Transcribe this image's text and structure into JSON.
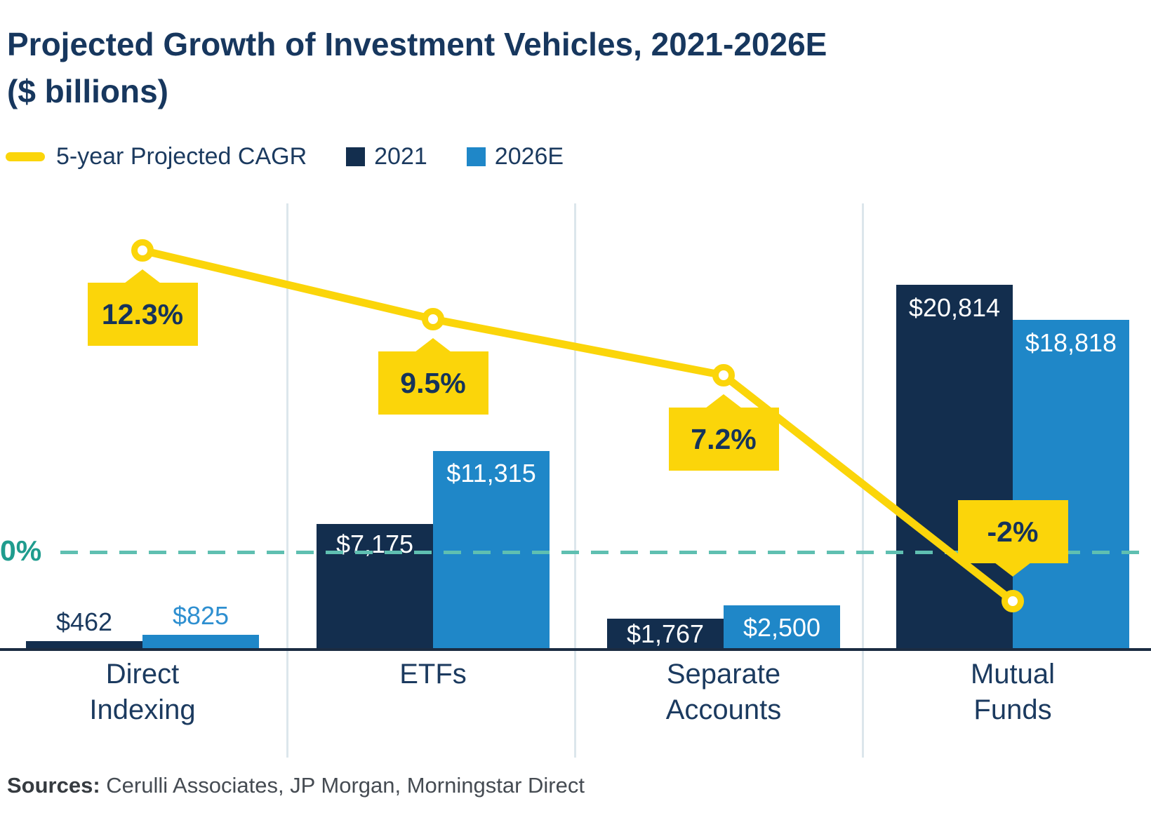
{
  "title": {
    "line1": "Projected Growth of Investment Vehicles, 2021-2026E",
    "line2": "($ billions)"
  },
  "legend": {
    "items": [
      {
        "label": "5-year Projected CAGR",
        "swatch": "yellow-line"
      },
      {
        "label": "2021",
        "swatch": "navy-square"
      },
      {
        "label": "2026E",
        "swatch": "blue-square"
      }
    ]
  },
  "zero_line": {
    "label": "0%"
  },
  "sources": {
    "prefix": "Sources:",
    "text": " Cerulli Associates, JP Morgan, Morningstar Direct"
  },
  "colors": {
    "navy_bar": "#132e4e",
    "blue_bar": "#1f87c8",
    "yellow": "#fbd50a",
    "callout_text": "#15335b",
    "teal_dash": "#5fbfb1",
    "teal_label": "#1f9c8e",
    "navy_text": "#1b3a5f",
    "blue_text": "#2e8fd0",
    "gridline": "#dce6ec",
    "axis": "#1b2c42",
    "bar_label_white": "#ffffff"
  },
  "chart_data": {
    "type": "bar",
    "title": "Projected Growth of Investment Vehicles, 2021-2026E ($ billions)",
    "xlabel": "",
    "ylabel": "$ billions",
    "ylim": [
      0,
      21000
    ],
    "grid": "vertical category separators only",
    "legend_position": "top",
    "categories": [
      "Direct Indexing",
      "ETFs",
      "Separate Accounts",
      "Mutual Funds"
    ],
    "category_display": [
      "Direct\nIndexing",
      "ETFs",
      "Separate\nAccounts",
      "Mutual\nFunds"
    ],
    "series": [
      {
        "name": "2021",
        "values": [
          462,
          7175,
          1767,
          20814
        ],
        "labels": [
          "$462",
          "$7,175",
          "$1,767",
          "$20,814"
        ]
      },
      {
        "name": "2026E",
        "values": [
          825,
          11315,
          2500,
          18818
        ],
        "labels": [
          "$825",
          "$11,315",
          "$2,500",
          "$18,818"
        ]
      }
    ],
    "line_series": {
      "name": "5-year Projected CAGR",
      "unit": "%",
      "values": [
        12.3,
        9.5,
        7.2,
        -2
      ],
      "labels": [
        "12.3%",
        "9.5%",
        "7.2%",
        "-2%"
      ],
      "callout_side": [
        "below",
        "below",
        "below",
        "above"
      ]
    },
    "reference_line": {
      "label": "0%",
      "value": 0,
      "style": "dashed"
    }
  }
}
